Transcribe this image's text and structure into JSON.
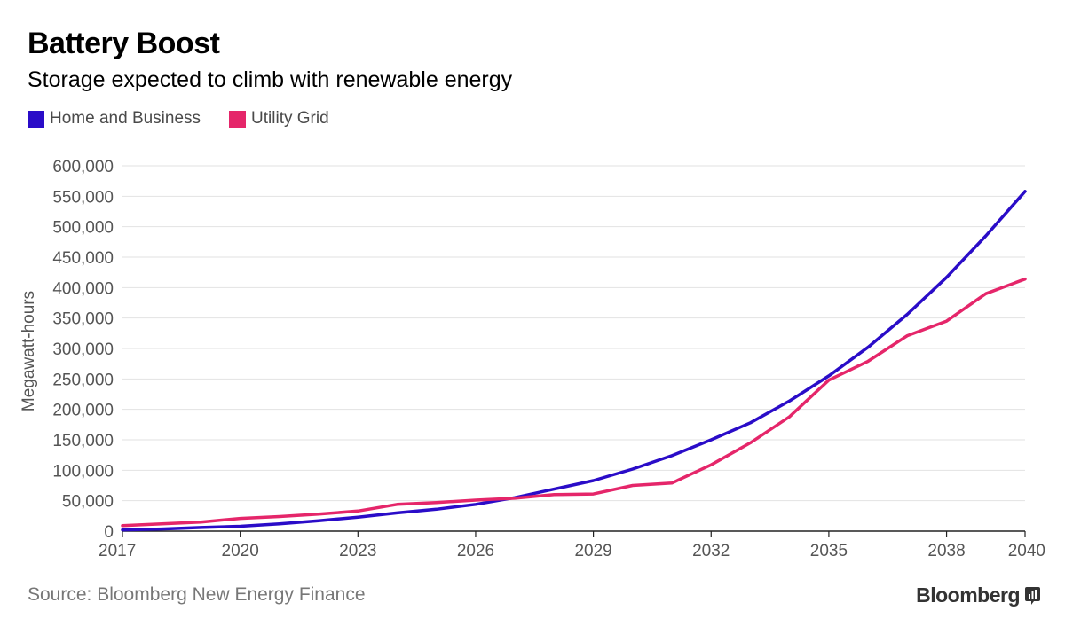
{
  "header": {
    "title": "Battery Boost",
    "subtitle": "Storage expected to climb with renewable energy"
  },
  "footer": {
    "source": "Source: Bloomberg New Energy Finance",
    "brand": "Bloomberg",
    "brand_icon": "bloomberg-logo-icon"
  },
  "colors": {
    "home_business": "#2a0cc8",
    "utility_grid": "#e5266a",
    "grid": "#e2e2e2",
    "axis_text": "#555555"
  },
  "chart_data": {
    "type": "line",
    "ylabel": "Megawatt-hours",
    "xlabel": "",
    "xlim": [
      2017,
      2040
    ],
    "ylim": [
      0,
      600000
    ],
    "grid": true,
    "legend_position": "top-left",
    "x_ticks": [
      2017,
      2020,
      2023,
      2026,
      2029,
      2032,
      2035,
      2038,
      2040
    ],
    "y_ticks": [
      0,
      50000,
      100000,
      150000,
      200000,
      250000,
      300000,
      350000,
      400000,
      450000,
      500000,
      550000,
      600000
    ],
    "y_tick_labels": [
      "0",
      "50,000",
      "100,000",
      "150,000",
      "200,000",
      "250,000",
      "300,000",
      "350,000",
      "400,000",
      "450,000",
      "500,000",
      "550,000",
      "600,000"
    ],
    "x": [
      2017,
      2018,
      2019,
      2020,
      2021,
      2022,
      2023,
      2024,
      2025,
      2026,
      2027,
      2028,
      2029,
      2030,
      2031,
      2032,
      2033,
      2034,
      2035,
      2036,
      2037,
      2038,
      2039,
      2040
    ],
    "series": [
      {
        "name": "Home and Business",
        "color": "#2a0cc8",
        "values": [
          2000,
          3500,
          6000,
          8000,
          12000,
          17000,
          23000,
          30000,
          36000,
          44000,
          55000,
          69000,
          83000,
          102000,
          124000,
          150000,
          178000,
          214000,
          255000,
          302000,
          356000,
          417000,
          485000,
          558000
        ]
      },
      {
        "name": "Utility Grid",
        "color": "#e5266a",
        "values": [
          9000,
          12000,
          15000,
          21000,
          24000,
          28000,
          33000,
          44000,
          47000,
          51000,
          54000,
          60000,
          61000,
          75000,
          79000,
          109000,
          145000,
          188000,
          248000,
          279000,
          321000,
          345000,
          390000,
          414000
        ]
      }
    ]
  }
}
